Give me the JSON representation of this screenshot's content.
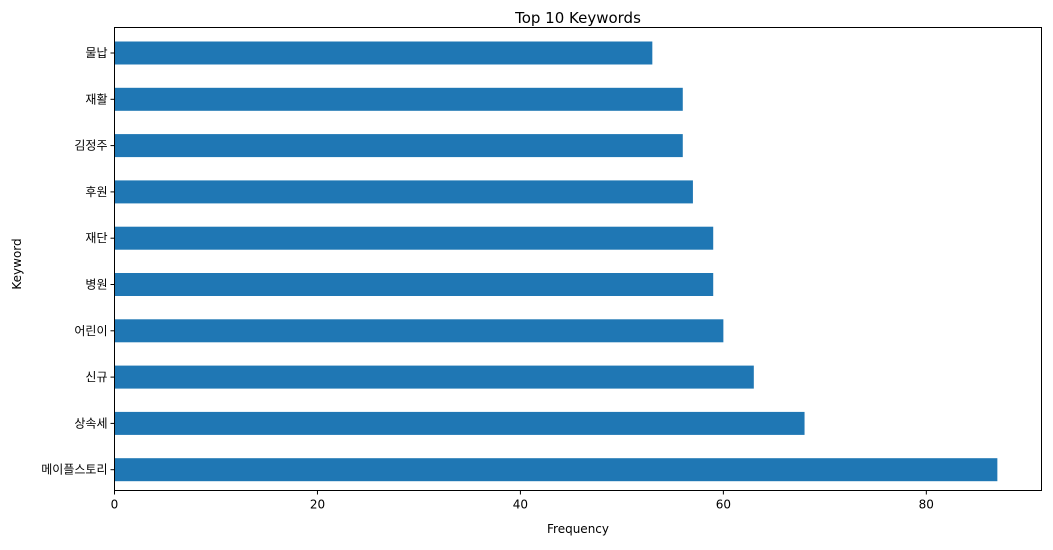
{
  "chart_data": {
    "type": "bar",
    "orientation": "horizontal",
    "title": "Top 10 Keywords",
    "xlabel": "Frequency",
    "ylabel": "Keyword",
    "categories": [
      "물납",
      "재활",
      "김정주",
      "후원",
      "재단",
      "병원",
      "어린이",
      "신규",
      "상속세",
      "메이플스토리"
    ],
    "values": [
      53,
      56,
      56,
      57,
      59,
      59,
      60,
      63,
      68,
      87
    ],
    "xlim": [
      0,
      91.35
    ],
    "xticks": [
      0,
      20,
      40,
      60,
      80
    ],
    "grid": false,
    "legend": "none",
    "bar_color": "#1f77b4"
  }
}
